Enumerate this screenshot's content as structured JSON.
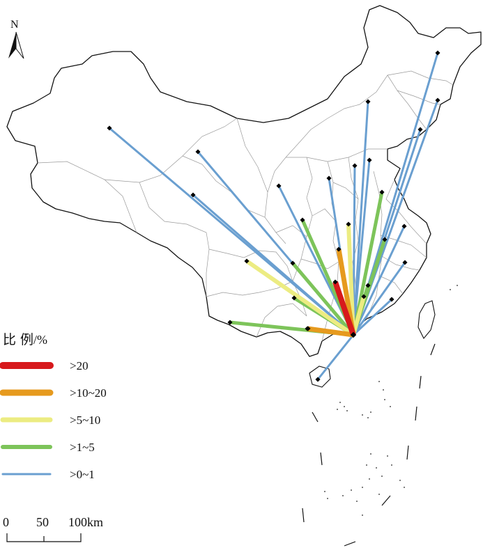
{
  "north_arrow": {
    "label": "N",
    "icon": "north-arrow-icon"
  },
  "legend": {
    "title_main": "比 例",
    "title_unit": "/%",
    "items": [
      {
        "label": ">20",
        "color": "#d7191c",
        "class": "gt20"
      },
      {
        "label": ">10~20",
        "color": "#e69a1e",
        "class": "10to20"
      },
      {
        "label": ">5~10",
        "color": "#ecec82",
        "class": "5to10"
      },
      {
        "label": ">1~5",
        "color": "#7dc45a",
        "class": "1to5"
      },
      {
        "label": ">0~1",
        "color": "#6a9fd0",
        "class": "0to1"
      }
    ]
  },
  "scale_bar": {
    "labels": [
      "0",
      "50",
      "100km"
    ]
  },
  "flows": [
    {
      "class": "0to1"
    },
    {
      "class": "0to1"
    },
    {
      "class": "0to1"
    },
    {
      "class": "0to1"
    },
    {
      "class": "0to1"
    },
    {
      "class": "0to1"
    },
    {
      "class": "0to1"
    },
    {
      "class": "0to1"
    },
    {
      "class": "0to1"
    },
    {
      "class": "0to1"
    },
    {
      "class": "0to1"
    },
    {
      "class": "0to1"
    },
    {
      "class": "0to1"
    },
    {
      "class": "0to1"
    },
    {
      "class": "0to1"
    },
    {
      "class": "1to5"
    },
    {
      "class": "1to5"
    },
    {
      "class": "1to5"
    },
    {
      "class": "1to5"
    },
    {
      "class": "1to5"
    },
    {
      "class": "1to5"
    },
    {
      "class": "1to5"
    },
    {
      "class": "1to5"
    },
    {
      "class": "5to10"
    },
    {
      "class": "5to10"
    },
    {
      "class": "5to10"
    },
    {
      "class": "10to20"
    },
    {
      "class": "10to20"
    },
    {
      "class": "gt20"
    }
  ]
}
